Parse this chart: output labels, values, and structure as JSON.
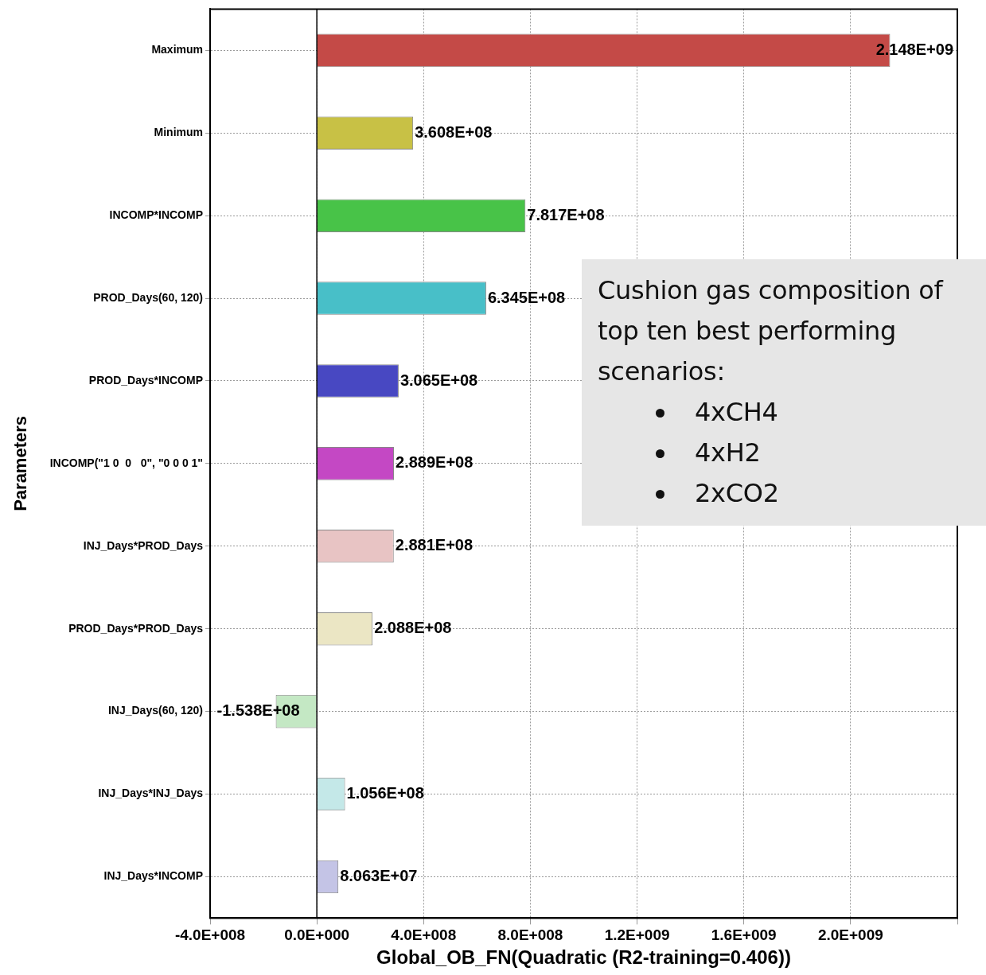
{
  "chart_data": {
    "type": "bar",
    "orientation": "horizontal",
    "ylabel": "Parameters",
    "xlabel": "Global_OB_FN(Quadratic (R2-training=0.406))",
    "categories": [
      "Maximum",
      "Minimum",
      "INCOMP*INCOMP",
      "PROD_Days(60, 120)",
      "PROD_Days*INCOMP",
      "INCOMP(\"1 0  0   0\", \"0 0 0 1\"",
      "INJ_Days*PROD_Days",
      "PROD_Days*PROD_Days",
      "INJ_Days(60, 120)",
      "INJ_Days*INJ_Days",
      "INJ_Days*INCOMP"
    ],
    "values": [
      2148000000.0,
      360800000.0,
      781700000.0,
      634500000.0,
      306500000.0,
      288900000.0,
      288100000.0,
      208800000.0,
      -153800000.0,
      105600000.0,
      80630000.0
    ],
    "value_labels": [
      "2.148E+09",
      "3.608E+08",
      "7.817E+08",
      "6.345E+08",
      "3.065E+08",
      "2.889E+08",
      "2.881E+08",
      "2.088E+08",
      "-1.538E+08",
      "1.056E+08",
      "8.063E+07"
    ],
    "colors": [
      "#c44a47",
      "#c8c145",
      "#48c348",
      "#48bfc8",
      "#4848c2",
      "#c448c4",
      "#e8c4c4",
      "#ebe6c4",
      "#c4e8c4",
      "#c4e8e8",
      "#c4c4e6"
    ],
    "xlim": [
      -400000000.0,
      2400000000.0
    ],
    "xticks": [
      {
        "value": -400000000.0,
        "label": "-4.0E+008"
      },
      {
        "value": 0,
        "label": "0.0E+000"
      },
      {
        "value": 400000000.0,
        "label": "4.0E+008"
      },
      {
        "value": 800000000.0,
        "label": "8.0E+008"
      },
      {
        "value": 1200000000.0,
        "label": "1.2E+009"
      },
      {
        "value": 1600000000.0,
        "label": "1.6E+009"
      },
      {
        "value": 2000000000.0,
        "label": "2.0E+009"
      },
      {
        "value": 2400000000.0,
        "label": null
      }
    ],
    "grid": true,
    "legend": false,
    "annotations": [
      "Cushion gas composition of top ten best performing scenarios:",
      "4xCH4",
      "4xH2",
      "2xCO2"
    ]
  }
}
